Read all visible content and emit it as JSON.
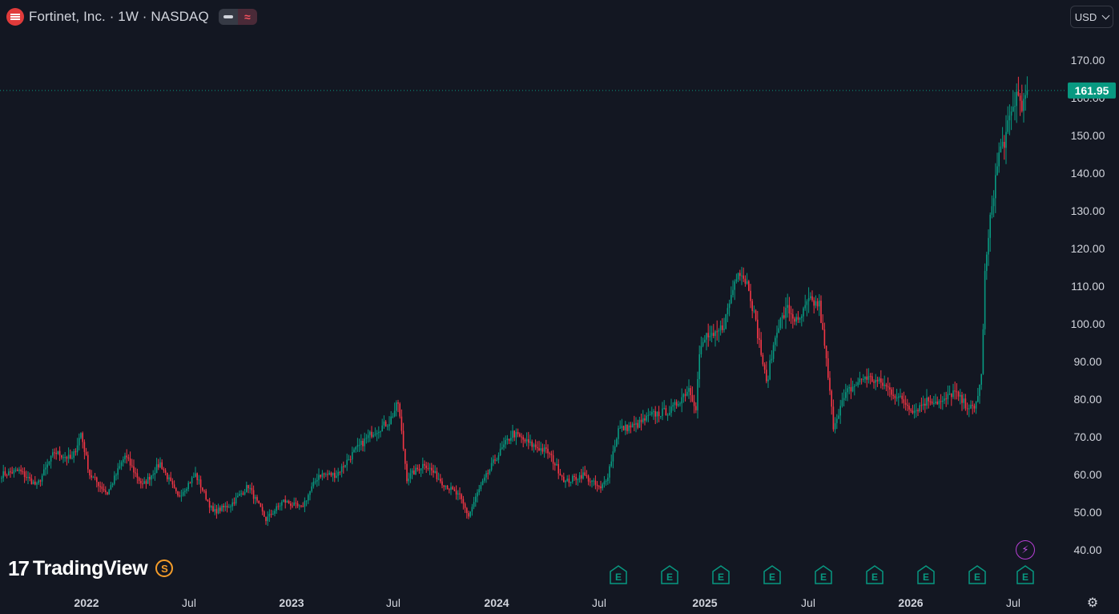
{
  "header": {
    "title": "Fortinet, Inc. · 1W · NASDAQ",
    "currency": "USD"
  },
  "footer": {
    "brand": "TradingView",
    "brand_badge": "S",
    "earnings_label": "E"
  },
  "colors": {
    "up": "#089981",
    "down": "#f23645",
    "background": "#131722",
    "axis_text": "#d1d4dc",
    "last_price_bg": "#089981"
  },
  "icons": {
    "symbol": "fortinet-logo-icon",
    "currency_chevron": "chevron-down-icon",
    "lightning": "lightning-icon",
    "settings": "gear-icon"
  },
  "chart_data": {
    "type": "candlestick",
    "title": "",
    "xlabel": "",
    "ylabel": "",
    "ylim": [
      35,
      178
    ],
    "y_ticks": [
      "40.00",
      "50.00",
      "60.00",
      "70.00",
      "80.00",
      "90.00",
      "100.00",
      "110.00",
      "120.00",
      "130.00",
      "140.00",
      "150.00",
      "160.00",
      "170.00"
    ],
    "x_ticks": [
      "2022",
      "Jul",
      "2023",
      "Jul",
      "2024",
      "Jul",
      "2025",
      "Jul",
      "2026",
      "Jul"
    ],
    "last_price": "161.95",
    "last_price_value": 161.95,
    "earnings_count": 9,
    "anchors": [
      [
        0,
        60
      ],
      [
        10,
        61
      ],
      [
        20,
        57
      ],
      [
        30,
        66
      ],
      [
        40,
        64
      ],
      [
        45,
        71
      ],
      [
        50,
        60
      ],
      [
        60,
        55
      ],
      [
        70,
        65
      ],
      [
        80,
        57
      ],
      [
        90,
        63
      ],
      [
        100,
        54
      ],
      [
        110,
        60
      ],
      [
        120,
        50
      ],
      [
        130,
        52
      ],
      [
        140,
        57
      ],
      [
        150,
        48
      ],
      [
        160,
        53
      ],
      [
        170,
        51
      ],
      [
        180,
        60
      ],
      [
        190,
        60
      ],
      [
        200,
        66
      ],
      [
        210,
        71
      ],
      [
        220,
        74
      ],
      [
        225,
        79
      ],
      [
        230,
        59
      ],
      [
        240,
        63
      ],
      [
        250,
        58
      ],
      [
        260,
        54
      ],
      [
        265,
        49
      ],
      [
        270,
        55
      ],
      [
        280,
        64
      ],
      [
        290,
        71
      ],
      [
        300,
        68
      ],
      [
        310,
        66
      ],
      [
        320,
        58
      ],
      [
        330,
        60
      ],
      [
        340,
        56
      ],
      [
        344,
        60
      ],
      [
        350,
        72
      ],
      [
        360,
        73
      ],
      [
        370,
        76
      ],
      [
        380,
        77
      ],
      [
        390,
        83
      ],
      [
        394,
        78
      ],
      [
        396,
        92
      ],
      [
        400,
        97
      ],
      [
        404,
        96
      ],
      [
        410,
        100
      ],
      [
        418,
        115
      ],
      [
        424,
        110
      ],
      [
        430,
        95
      ],
      [
        434,
        84
      ],
      [
        440,
        99
      ],
      [
        446,
        104
      ],
      [
        452,
        100
      ],
      [
        458,
        106
      ],
      [
        464,
        105
      ],
      [
        468,
        90
      ],
      [
        472,
        73
      ],
      [
        476,
        78
      ],
      [
        480,
        82
      ],
      [
        490,
        86
      ],
      [
        500,
        84
      ],
      [
        510,
        80
      ],
      [
        518,
        77
      ],
      [
        526,
        80
      ],
      [
        534,
        79
      ],
      [
        540,
        82
      ],
      [
        546,
        79
      ],
      [
        552,
        77
      ],
      [
        556,
        86
      ],
      [
        558,
        113
      ],
      [
        562,
        132
      ],
      [
        566,
        145
      ],
      [
        570,
        150
      ],
      [
        576,
        161
      ],
      [
        580,
        158
      ],
      [
        582,
        162
      ]
    ]
  }
}
